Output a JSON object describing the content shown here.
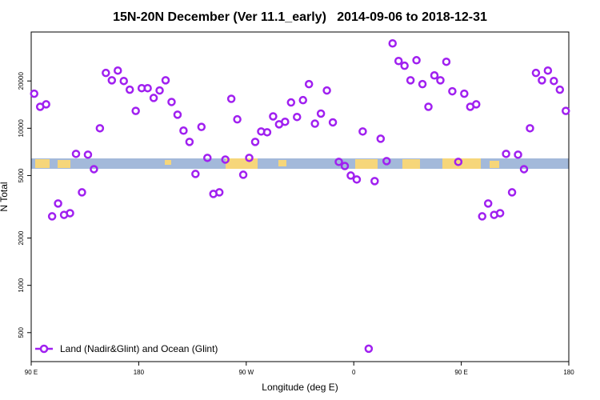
{
  "chart_data": {
    "type": "scatter",
    "title": "15N-20N December (Ver 11.1_early)   2014-09-06 to 2018-12-31",
    "xlabel": "Longitude (deg E)",
    "ylabel": "N Total",
    "yscale": "log",
    "legend": "bottom-left",
    "xlim": [
      90,
      540
    ],
    "xticks": [
      {
        "value": 90,
        "label": "90 E"
      },
      180,
      {
        "value": 270,
        "label": "90 W"
      },
      {
        "value": 360,
        "label": "0"
      },
      {
        "value": 450,
        "label": "90 E"
      },
      {
        "value": 540,
        "label": "180"
      }
    ],
    "ylim": [
      327,
      41000
    ],
    "yticks": [
      500,
      1000,
      2000,
      5000,
      10000,
      20000
    ],
    "series": [
      {
        "name": "Land (Nadir&Glint) and Ocean (Glint)",
        "color": "#a020f0",
        "x": [
          92.5,
          97.5,
          102.5,
          107.5,
          112.5,
          117.5,
          122.5,
          127.5,
          132.5,
          137.5,
          142.5,
          147.5,
          152.5,
          157.5,
          162.5,
          167.5,
          172.5,
          177.5,
          182.5,
          187.5,
          192.5,
          197.5,
          202.5,
          207.5,
          212.5,
          217.5,
          222.5,
          227.5,
          232.5,
          237.5,
          242.5,
          247.5,
          252.5,
          257.5,
          262.5,
          267.5,
          272.5,
          277.5,
          282.5,
          287.5,
          292.5,
          297.5,
          302.5,
          307.5,
          312.5,
          317.5,
          322.5,
          327.5,
          332.5,
          337.5,
          342.5,
          347.5,
          352.5,
          357.5,
          362.5,
          367.5,
          372.5,
          377.5,
          382.5,
          387.5,
          392.5,
          397.5,
          402.5,
          407.5,
          412.5,
          417.5,
          422.5,
          427.5,
          432.5,
          437.5,
          442.5,
          447.5,
          452.5,
          457.5,
          462.5,
          467.5,
          472.5,
          477.5,
          482.5,
          487.5,
          492.5,
          497.5,
          502.5,
          507.5,
          512.5,
          517.5,
          522.5,
          527.5,
          532.5,
          537.5
        ],
        "values": [
          16600,
          13700,
          14200,
          2750,
          3320,
          2810,
          2880,
          6870,
          3910,
          6790,
          5490,
          10000,
          22500,
          20200,
          23300,
          20000,
          17600,
          12900,
          18000,
          18000,
          15600,
          17400,
          20200,
          14700,
          12200,
          9660,
          8190,
          5120,
          10200,
          6480,
          3820,
          3910,
          6320,
          15400,
          11400,
          5060,
          6480,
          8190,
          9540,
          9430,
          11900,
          10600,
          11000,
          14600,
          11800,
          15100,
          19100,
          10700,
          12400,
          17400,
          10900,
          6110,
          5750,
          5000,
          4720,
          9540,
          395,
          4610,
          8580,
          6180,
          34700,
          26800,
          25000,
          20200,
          27100,
          19100,
          13700,
          21700,
          20200,
          26500,
          17200,
          6110,
          16600,
          13700,
          14200,
          2750,
          3320,
          2810,
          2880,
          6870,
          3910,
          6790,
          5490,
          10000,
          22500,
          20200,
          23300,
          20000,
          17600,
          12900
        ]
      }
    ]
  }
}
